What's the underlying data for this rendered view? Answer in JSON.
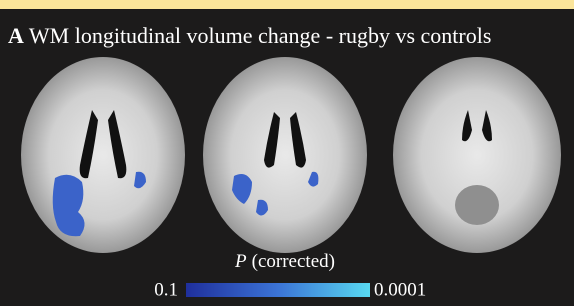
{
  "panel": {
    "label": "A",
    "title": "WM longitudinal volume change - rugby vs controls"
  },
  "colorbar": {
    "symbol": "P",
    "label": "(corrected)",
    "min_label": "0.1",
    "max_label": "0.0001"
  }
}
